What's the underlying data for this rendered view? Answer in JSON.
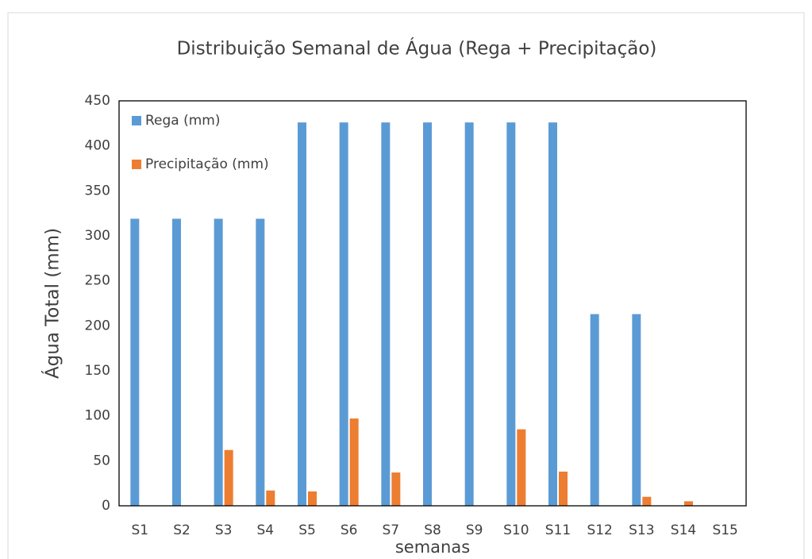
{
  "chart_data": {
    "type": "bar",
    "title": "Distribuição Semanal de Água (Rega + Precipitação)",
    "x_label": "semanas",
    "y_label": "Água Total (mm)",
    "categories": [
      "S1",
      "S2",
      "S3",
      "S4",
      "S5",
      "S6",
      "S7",
      "S8",
      "S9",
      "S10",
      "S11",
      "S12",
      "S13",
      "S14",
      "S15"
    ],
    "series": [
      {
        "name": "Rega (mm)",
        "color": "#5b9bd5",
        "values": [
          319,
          319,
          319,
          319,
          426,
          426,
          426,
          426,
          426,
          426,
          426,
          213,
          213,
          0,
          0
        ]
      },
      {
        "name": "Precipitação (mm)",
        "color": "#ed7d31",
        "values": [
          0,
          0,
          62,
          17,
          16,
          97,
          37,
          0,
          0,
          85,
          38,
          0,
          10,
          5,
          0
        ]
      }
    ],
    "ylim": [
      0,
      450
    ],
    "yticks": [
      0,
      50,
      100,
      150,
      200,
      250,
      300,
      350,
      400,
      450
    ],
    "legend": "top-left",
    "grid": false
  }
}
